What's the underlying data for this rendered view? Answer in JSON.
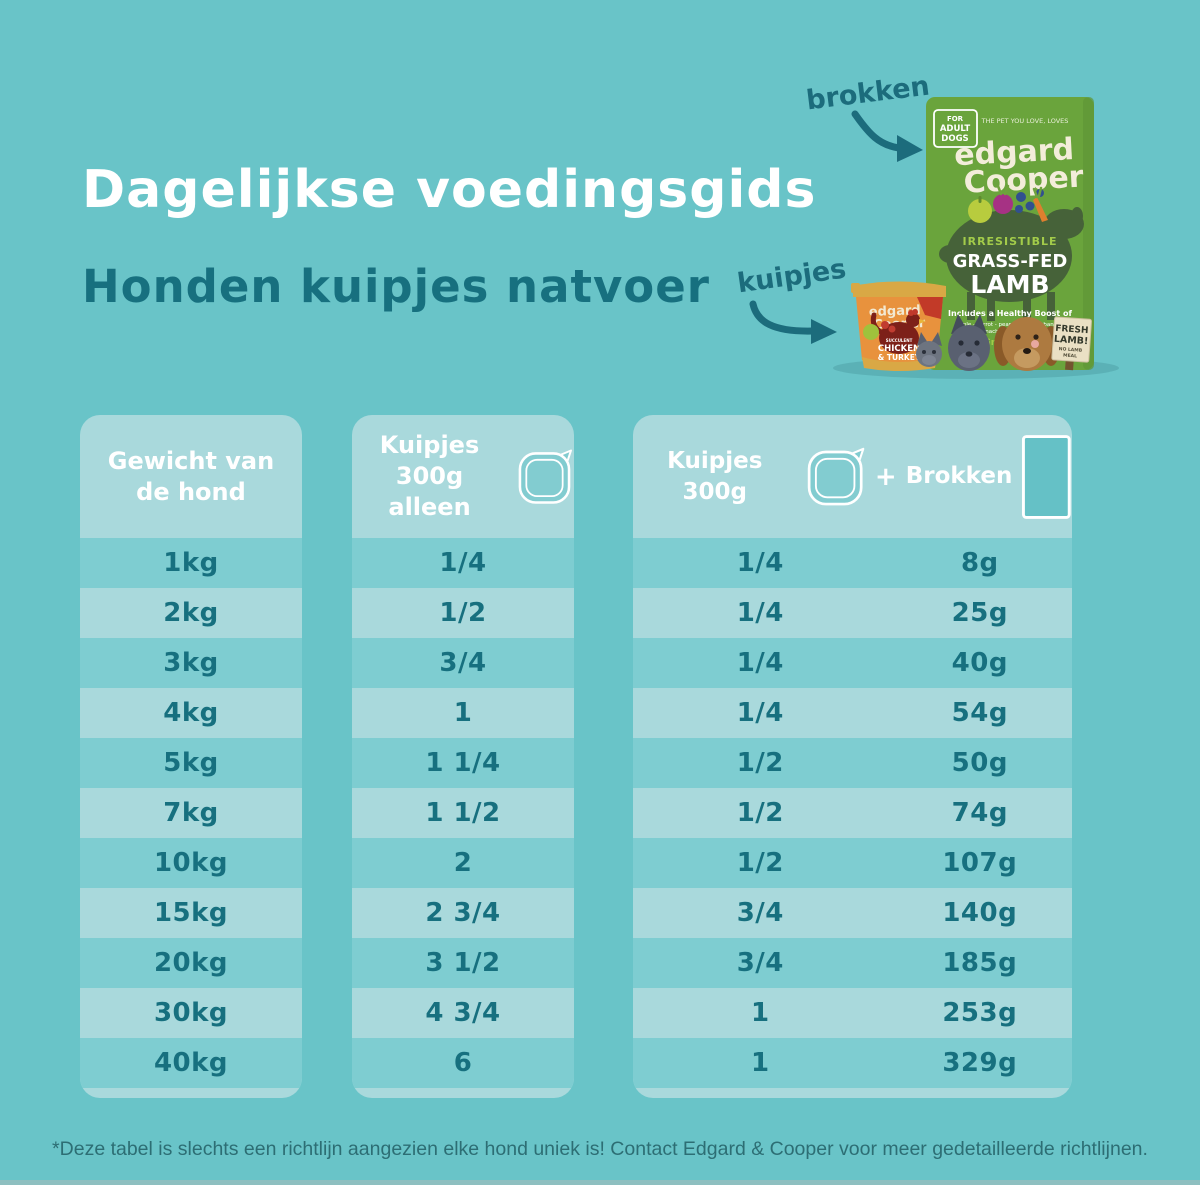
{
  "page": {
    "title": "Dagelijkse voedingsgids",
    "subtitle": "Honden kuipjes natvoer",
    "footnote": "*Deze tabel is slechts een richtlijn aangezien elke hond uniek is! Contact Edgard & Cooper voor meer gedetailleerde richtlijnen."
  },
  "labels": {
    "brokken": "brokken",
    "kuipjes": "kuipjes"
  },
  "bag": {
    "badge_line1": "FOR",
    "badge_line2": "ADULT",
    "badge_line3": "DOGS",
    "tagline": "THE PET YOU LOVE, LOVES",
    "brand_line1": "edgard",
    "brand_line2": "Cooper",
    "flavor_tag": "IRRESISTIBLE",
    "flavor_line1": "GRASS-FED",
    "flavor_line2": "LAMB",
    "boost_heading": "Includes a Healthy Boost of",
    "boost_line1": "apple - carrot - pear - broccoli - banana",
    "boost_line2": "kale - spinach - beetroot - blueberry",
    "grain_free": "Grain-Free",
    "sign_line1": "FRESH",
    "sign_line2": "LAMB!",
    "sign_line3": "NO LAMB",
    "sign_line4": "MEAL"
  },
  "tray": {
    "brand_line1": "edgard",
    "brand_line2": "Cooper",
    "flavor_small": "SUCCULENT",
    "flavor_line1": "CHICKEN",
    "flavor_line2": "& TURKEY"
  },
  "table": {
    "col1": {
      "line1": "Gewicht van",
      "line2": "de hond"
    },
    "col2": {
      "line1": "Kuipjes",
      "line2": "300g alleen"
    },
    "col3": {
      "part1": "Kuipjes 300g",
      "plus": "+",
      "part2": "Brokken"
    },
    "rows": [
      {
        "weight": "1kg",
        "kuipjes_alleen": "1/4",
        "kuipjes_mix": "1/4",
        "brokken": "8g"
      },
      {
        "weight": "2kg",
        "kuipjes_alleen": "1/2",
        "kuipjes_mix": "1/4",
        "brokken": "25g"
      },
      {
        "weight": "3kg",
        "kuipjes_alleen": "3/4",
        "kuipjes_mix": "1/4",
        "brokken": "40g"
      },
      {
        "weight": "4kg",
        "kuipjes_alleen": "1",
        "kuipjes_mix": "1/4",
        "brokken": "54g"
      },
      {
        "weight": "5kg",
        "kuipjes_alleen": "1 1/4",
        "kuipjes_mix": "1/2",
        "brokken": "50g"
      },
      {
        "weight": "7kg",
        "kuipjes_alleen": "1 1/2",
        "kuipjes_mix": "1/2",
        "brokken": "74g"
      },
      {
        "weight": "10kg",
        "kuipjes_alleen": "2",
        "kuipjes_mix": "1/2",
        "brokken": "107g"
      },
      {
        "weight": "15kg",
        "kuipjes_alleen": "2 3/4",
        "kuipjes_mix": "3/4",
        "brokken": "140g"
      },
      {
        "weight": "20kg",
        "kuipjes_alleen": "3 1/2",
        "kuipjes_mix": "3/4",
        "brokken": "185g"
      },
      {
        "weight": "30kg",
        "kuipjes_alleen": "4 3/4",
        "kuipjes_mix": "1",
        "brokken": "253g"
      },
      {
        "weight": "40kg",
        "kuipjes_alleen": "6",
        "kuipjes_mix": "1",
        "brokken": "329g"
      }
    ]
  },
  "colors": {
    "background": "#69c4c8",
    "panel": "#a9d9dc",
    "row_stripe": "#7ecdd1",
    "text_teal": "#17707f",
    "hand_teal": "#1c6c7c",
    "white": "#ffffff",
    "bag_green": "#6aa43c",
    "sheep_dark_green": "#466239",
    "tray_orange": "#e8923d",
    "tray_gold": "#d9a845",
    "label_red": "#7d2019"
  },
  "chart_data": {
    "type": "table",
    "title": "Dagelijkse voedingsgids - Honden kuipjes natvoer",
    "columns": [
      "Gewicht van de hond",
      "Kuipjes 300g alleen",
      "Kuipjes 300g (+ Brokken)",
      "Brokken"
    ],
    "rows": [
      [
        "1kg",
        "1/4",
        "1/4",
        "8g"
      ],
      [
        "2kg",
        "1/2",
        "1/4",
        "25g"
      ],
      [
        "3kg",
        "3/4",
        "1/4",
        "40g"
      ],
      [
        "4kg",
        "1",
        "1/4",
        "54g"
      ],
      [
        "5kg",
        "1 1/4",
        "1/2",
        "50g"
      ],
      [
        "7kg",
        "1 1/2",
        "1/2",
        "74g"
      ],
      [
        "10kg",
        "2",
        "1/2",
        "107g"
      ],
      [
        "15kg",
        "2 3/4",
        "3/4",
        "140g"
      ],
      [
        "20kg",
        "3 1/2",
        "3/4",
        "185g"
      ],
      [
        "30kg",
        "4 3/4",
        "1",
        "253g"
      ],
      [
        "40kg",
        "6",
        "1",
        "329g"
      ]
    ]
  }
}
